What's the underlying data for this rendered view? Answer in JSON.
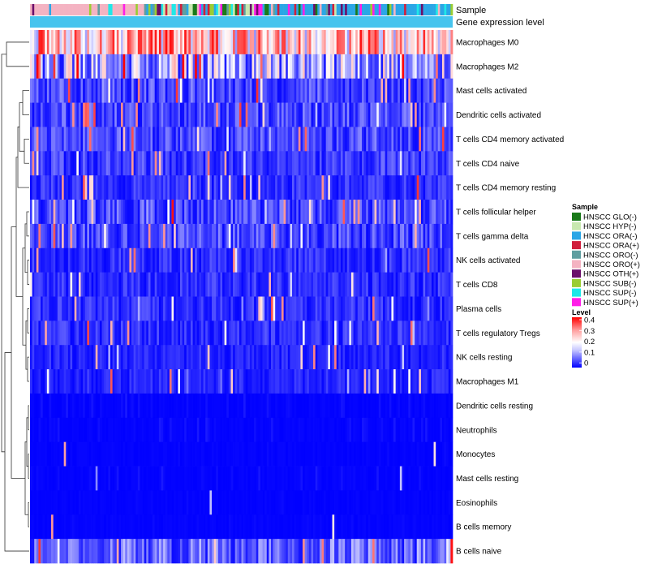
{
  "chart_data": {
    "type": "heatmap",
    "title": "",
    "n_samples": 200,
    "annotation_tracks": [
      {
        "name": "Sample"
      },
      {
        "name": "Gene expression level"
      }
    ],
    "rows": [
      {
        "label": "Macrophages M0",
        "mean": 0.26
      },
      {
        "label": "Macrophages M2",
        "mean": 0.14
      },
      {
        "label": "Mast cells activated",
        "mean": 0.07
      },
      {
        "label": "Dendritic cells activated",
        "mean": 0.07
      },
      {
        "label": "T cells CD4 memory activated",
        "mean": 0.07
      },
      {
        "label": "T cells CD4 naive",
        "mean": 0.06
      },
      {
        "label": "T cells CD4 memory resting",
        "mean": 0.05
      },
      {
        "label": "T cells follicular helper",
        "mean": 0.07
      },
      {
        "label": "T cells gamma delta",
        "mean": 0.07
      },
      {
        "label": "NK cells activated",
        "mean": 0.05
      },
      {
        "label": "T cells CD8",
        "mean": 0.05
      },
      {
        "label": "Plasma cells",
        "mean": 0.05
      },
      {
        "label": "T cells regulatory  Tregs",
        "mean": 0.05
      },
      {
        "label": "NK cells resting",
        "mean": 0.04
      },
      {
        "label": "Macrophages M1",
        "mean": 0.04
      },
      {
        "label": "Dendritic cells resting",
        "mean": 0.02
      },
      {
        "label": "Neutrophils",
        "mean": 0.02
      },
      {
        "label": "Monocytes",
        "mean": 0.01
      },
      {
        "label": "Mast cells resting",
        "mean": 0.02
      },
      {
        "label": "Eosinophils",
        "mean": 0.01
      },
      {
        "label": "B cells memory",
        "mean": 0.01
      },
      {
        "label": "B cells naive",
        "mean": 0.09
      }
    ],
    "sample_legend": {
      "title": "Sample",
      "entries": [
        {
          "label": "HNSCC GLO(-)",
          "color": "#1a7a1a"
        },
        {
          "label": "HNSCC HYP(-)",
          "color": "#c8e8b0"
        },
        {
          "label": "HNSCC ORA(-)",
          "color": "#2aa6e6"
        },
        {
          "label": "HNSCC ORA(+)",
          "color": "#d01f3c"
        },
        {
          "label": "HNSCC ORO(-)",
          "color": "#5f9ea0"
        },
        {
          "label": "HNSCC ORO(+)",
          "color": "#f4b3c2"
        },
        {
          "label": "HNSCC OTH(+)",
          "color": "#6b0f6b"
        },
        {
          "label": "HNSCC SUB(-)",
          "color": "#9acd32"
        },
        {
          "label": "HNSCC SUP(-)",
          "color": "#1ee8e8"
        },
        {
          "label": "HNSCC SUP(+)",
          "color": "#ff1ee8"
        }
      ]
    },
    "level_legend": {
      "title": "Level",
      "ticks": [
        "0.4",
        "0.3",
        "0.2",
        "0.1",
        "0"
      ],
      "range": [
        0,
        0.4
      ],
      "colors": [
        "#0000ff",
        "#ffffff",
        "#ff0000"
      ]
    },
    "expression_track_color": "#46c4ee"
  }
}
